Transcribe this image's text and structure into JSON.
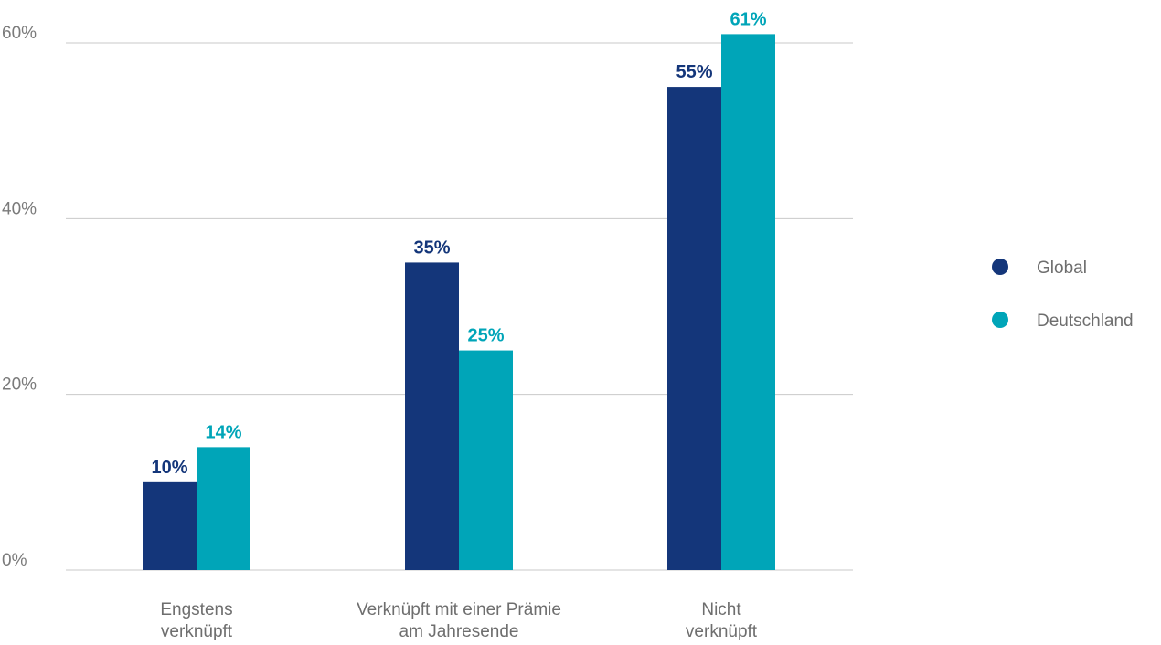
{
  "chart_data": {
    "type": "bar",
    "categories": [
      [
        "Engstens",
        "verknüpft"
      ],
      [
        "Verknüpft mit einer Prämie",
        "am Jahresende"
      ],
      [
        "Nicht",
        "verknüpft"
      ]
    ],
    "series": [
      {
        "name": "Global",
        "values": [
          10,
          35,
          55
        ],
        "labels": [
          "10%",
          "35%",
          "55%"
        ],
        "color": "#14367a"
      },
      {
        "name": "Deutschland",
        "values": [
          14,
          25,
          61
        ],
        "labels": [
          "14%",
          "25%",
          "61%"
        ],
        "color": "#00a5b8"
      }
    ],
    "yticks": [
      {
        "value": 0,
        "label": "0%"
      },
      {
        "value": 20,
        "label": "20%"
      },
      {
        "value": 40,
        "label": "40%"
      },
      {
        "value": 60,
        "label": "60%"
      }
    ],
    "ylim": [
      0,
      60
    ],
    "title": "",
    "xlabel": "",
    "ylabel": "",
    "grid": true,
    "legend_position": "right",
    "colors": {
      "grid": "#c9c9c9",
      "tick_text": "#7a7a7a",
      "category_text": "#6e6e6e"
    }
  }
}
